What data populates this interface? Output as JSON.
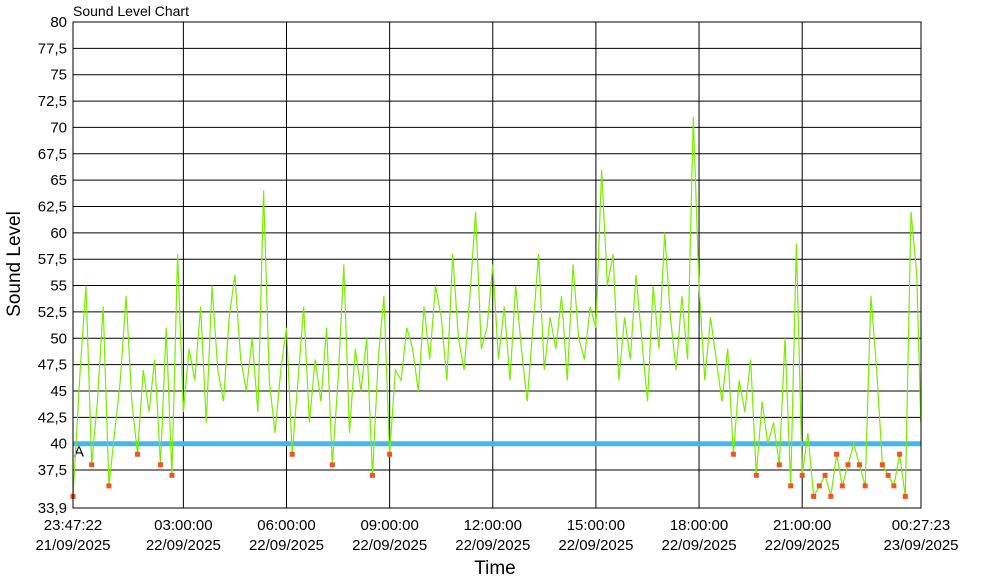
{
  "chart_data": {
    "type": "line",
    "title": "Sound Level Chart",
    "xlabel": "Time",
    "ylabel": "Sound Level",
    "grid": true,
    "colors": {
      "series": "#77ee00",
      "threshold": "#44b8ec",
      "below_marker": "#ee5522",
      "grid": "#000000"
    },
    "xlim": [
      "21/09/2025 23:47:22",
      "23/09/2025 00:27:23"
    ],
    "ylim": [
      33.9,
      80
    ],
    "y_ticks": [
      "80",
      "77,5",
      "75",
      "72,5",
      "70",
      "67,5",
      "65",
      "62,5",
      "60",
      "57,5",
      "55",
      "52,5",
      "50",
      "47,5",
      "45",
      "42,5",
      "40",
      "37,5",
      "33,9"
    ],
    "x_ticks": [
      {
        "time": "23:47:22",
        "date": "21/09/2025"
      },
      {
        "time": "03:00:00",
        "date": "22/09/2025"
      },
      {
        "time": "06:00:00",
        "date": "22/09/2025"
      },
      {
        "time": "09:00:00",
        "date": "22/09/2025"
      },
      {
        "time": "12:00:00",
        "date": "22/09/2025"
      },
      {
        "time": "15:00:00",
        "date": "22/09/2025"
      },
      {
        "time": "18:00:00",
        "date": "22/09/2025"
      },
      {
        "time": "21:00:00",
        "date": "22/09/2025"
      },
      {
        "time": "00:27:23",
        "date": "23/09/2025"
      }
    ],
    "threshold": {
      "value": 40,
      "marker_label": "A"
    },
    "series": [
      {
        "x": [
          "23:47",
          "00:00",
          "00:10",
          "00:20",
          "00:30",
          "00:40",
          "00:50",
          "01:00",
          "01:10",
          "01:20",
          "01:30",
          "01:40",
          "01:50",
          "02:00",
          "02:10",
          "02:20",
          "02:30",
          "02:40",
          "02:50",
          "03:00",
          "03:10",
          "03:20",
          "03:30",
          "03:40",
          "03:50",
          "04:00",
          "04:10",
          "04:20",
          "04:30",
          "04:40",
          "04:50",
          "05:00",
          "05:10",
          "05:20",
          "05:30",
          "05:40",
          "05:50",
          "06:00",
          "06:10",
          "06:20",
          "06:30",
          "06:40",
          "06:50",
          "07:00",
          "07:10",
          "07:20",
          "07:30",
          "07:40",
          "07:50",
          "08:00",
          "08:10",
          "08:20",
          "08:30",
          "08:40",
          "08:50",
          "09:00",
          "09:10",
          "09:20",
          "09:30",
          "09:40",
          "09:50",
          "10:00",
          "10:10",
          "10:20",
          "10:30",
          "10:40",
          "10:50",
          "11:00",
          "11:10",
          "11:20",
          "11:30",
          "11:40",
          "11:50",
          "12:00",
          "12:10",
          "12:20",
          "12:30",
          "12:40",
          "12:50",
          "13:00",
          "13:10",
          "13:20",
          "13:30",
          "13:40",
          "13:50",
          "14:00",
          "14:10",
          "14:20",
          "14:30",
          "14:40",
          "14:50",
          "15:00",
          "15:10",
          "15:20",
          "15:30",
          "15:40",
          "15:50",
          "16:00",
          "16:10",
          "16:20",
          "16:30",
          "16:40",
          "16:50",
          "17:00",
          "17:10",
          "17:20",
          "17:30",
          "17:40",
          "17:50",
          "18:00",
          "18:10",
          "18:20",
          "18:30",
          "18:40",
          "18:50",
          "19:00",
          "19:10",
          "19:20",
          "19:30",
          "19:40",
          "19:50",
          "20:00",
          "20:10",
          "20:20",
          "20:30",
          "20:40",
          "20:50",
          "21:00",
          "21:10",
          "21:20",
          "21:30",
          "21:40",
          "21:50",
          "22:00",
          "22:10",
          "22:20",
          "22:30",
          "22:40",
          "22:50",
          "23:00",
          "23:10",
          "23:20",
          "23:30",
          "23:40",
          "23:50",
          "00:00",
          "00:10",
          "00:20",
          "00:27"
        ],
        "values": [
          35,
          47,
          55,
          38,
          44,
          53,
          36,
          41,
          46,
          54,
          44,
          39,
          47,
          43,
          48,
          38,
          51,
          37,
          58,
          43,
          49,
          46,
          53,
          42,
          55,
          47,
          44,
          52,
          56,
          48,
          45,
          50,
          43,
          64,
          46,
          41,
          47,
          51,
          39,
          46,
          53,
          42,
          48,
          44,
          51,
          38,
          46,
          57,
          41,
          49,
          45,
          50,
          37,
          48,
          54,
          39,
          47,
          46,
          51,
          49,
          45,
          53,
          48,
          55,
          52,
          46,
          58,
          50,
          47,
          54,
          62,
          49,
          51,
          57,
          48,
          53,
          46,
          55,
          49,
          44,
          51,
          58,
          47,
          52,
          49,
          54,
          46,
          57,
          50,
          48,
          53,
          51,
          66,
          55,
          58,
          46,
          52,
          48,
          56,
          50,
          44,
          55,
          49,
          60,
          52,
          47,
          54,
          48,
          71,
          55,
          46,
          52,
          48,
          44,
          49,
          39,
          46,
          43,
          48,
          37,
          44,
          40,
          42,
          38,
          50,
          36,
          59,
          37,
          41,
          35,
          36,
          37,
          35,
          39,
          36,
          38,
          40,
          38,
          36,
          54,
          47,
          38,
          37,
          36,
          39,
          35,
          62,
          56,
          42
        ]
      }
    ]
  }
}
